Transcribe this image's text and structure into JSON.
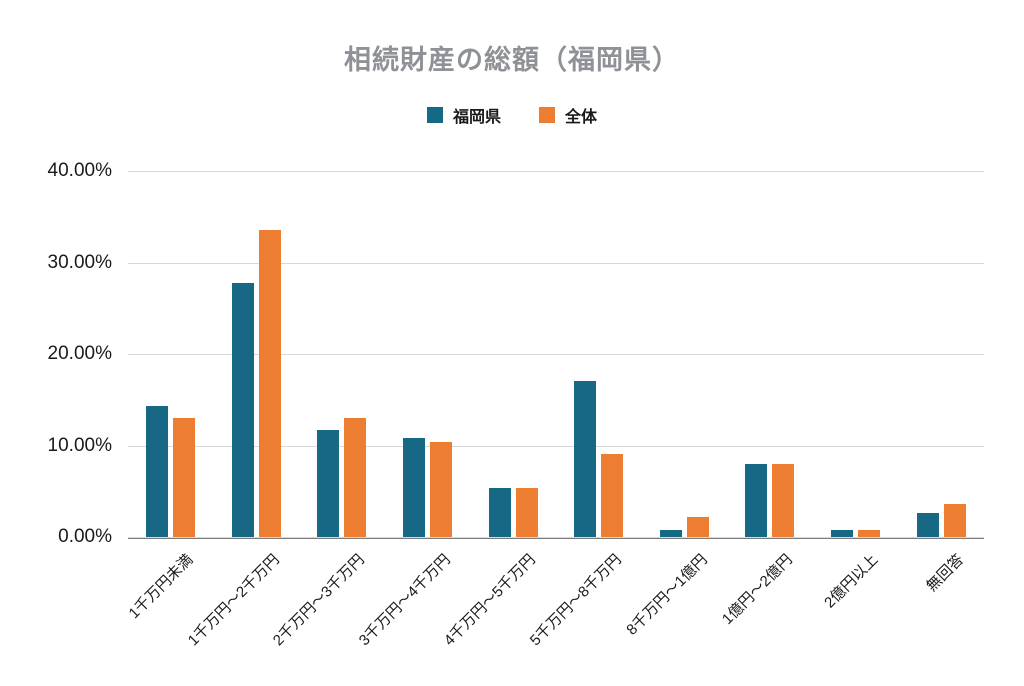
{
  "chart_data": {
    "type": "bar",
    "title": "相続財産の総額（福岡県）",
    "categories": [
      "1千万円未満",
      "1千万円～2千万円",
      "2千万円～3千万円",
      "3千万円～4千万円",
      "4千万円～5千万円",
      "5千万円～8千万円",
      "8千万円～1億円",
      "1億円～2億円",
      "2億円以上",
      "無回答"
    ],
    "series": [
      {
        "name": "福岡県",
        "color": "#176884",
        "values": [
          14.3,
          27.8,
          11.7,
          10.8,
          5.4,
          17.1,
          0.8,
          8.0,
          0.8,
          2.6
        ]
      },
      {
        "name": "全体",
        "color": "#ED7D31",
        "values": [
          13.0,
          33.5,
          13.0,
          10.4,
          5.4,
          9.1,
          2.2,
          8.0,
          0.8,
          3.6
        ]
      }
    ],
    "ylim": [
      0,
      40
    ],
    "ytick_values": [
      0,
      10,
      20,
      30,
      40
    ],
    "ytick_labels": [
      "0.00%",
      "10.00%",
      "20.00%",
      "30.00%",
      "40.00%"
    ],
    "grid": "horizontal",
    "legend_position": "top-center"
  }
}
